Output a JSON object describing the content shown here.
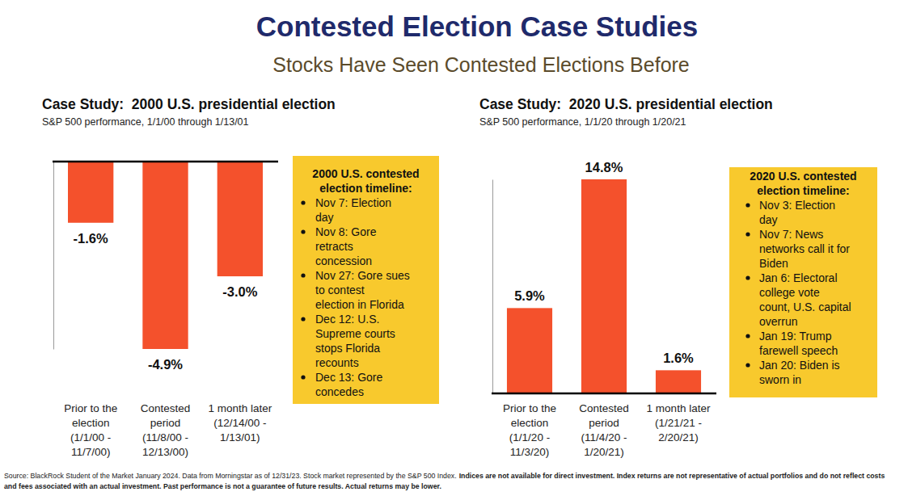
{
  "title": "Contested Election Case Studies",
  "subtitle": "Stocks Have Seen Contested Elections Before",
  "footnote": [
    "Source: BlackRock Student of the Market January 2024. Data from Morningstar as of 12/31/23. Stock market represented by the S&P 500 Index.",
    "Indices are not available for direct investment. Index returns are not representative of actual portfolios and do not reflect costs\nand fees associated with an actual investment. Past performance is not a guarantee of future results. Actual returns may be lower."
  ],
  "chart_data": [
    {
      "type": "bar",
      "title": "Case Study:  2000 U.S. presidential election",
      "subtitle": "S&P 500 performance, 1/1/00 through 1/13/01",
      "categories": [
        "Prior to the\nelection\n(1/1/00 -\n11/7/00)",
        "Contested\nperiod\n(11/8/00 -\n12/13/00)",
        "1 month later\n(12/14/00 -\n1/13/01)"
      ],
      "values": [
        -1.6,
        -4.9,
        -3.0
      ],
      "value_labels": [
        "-1.6%",
        "-4.9%",
        "-3.0%"
      ],
      "color": "#f4512c",
      "ylim": [
        -4.9,
        0
      ],
      "yticks": [
        0
      ],
      "data_labels": true,
      "tick_labels": "x",
      "annotation": {
        "title": "2000 U.S. contested\nelection timeline:",
        "items": [
          "Nov 7: Election\nday",
          "Nov 8: Gore\nretracts\nconcession",
          "Nov 27: Gore sues\nto contest\nelection in Florida",
          "Dec 12: U.S.\nSupreme courts\nstops Florida\nrecounts",
          "Dec 13: Gore\nconcedes"
        ]
      }
    },
    {
      "type": "bar",
      "title": "Case Study:  2020 U.S. presidential election",
      "subtitle": "S&P 500 performance, 1/1/20 through 1/20/21",
      "categories": [
        "Prior to the\nelection\n(1/1/20 -\n11/3/20)",
        "Contested\nperiod\n(11/4/20 -\n1/20/21)",
        "1 month later\n(1/21/21 -\n2/20/21)"
      ],
      "values": [
        5.9,
        14.8,
        1.6
      ],
      "value_labels": [
        "5.9%",
        "14.8%",
        "1.6%"
      ],
      "color": "#f4512c",
      "ylim": [
        0,
        14.8
      ],
      "yticks": [
        0
      ],
      "data_labels": true,
      "tick_labels": "x",
      "annotation": {
        "title": "2020 U.S. contested\nelection timeline:",
        "items": [
          "Nov 3: Election\nday",
          "Nov 7: News\nnetworks call it for\nBiden",
          "Jan 6: Electoral\ncollege vote\ncount, U.S. capital\noverrun",
          "Jan 19: Trump\nfarewell speech",
          "Jan 20: Biden is\nsworn in"
        ]
      }
    }
  ]
}
